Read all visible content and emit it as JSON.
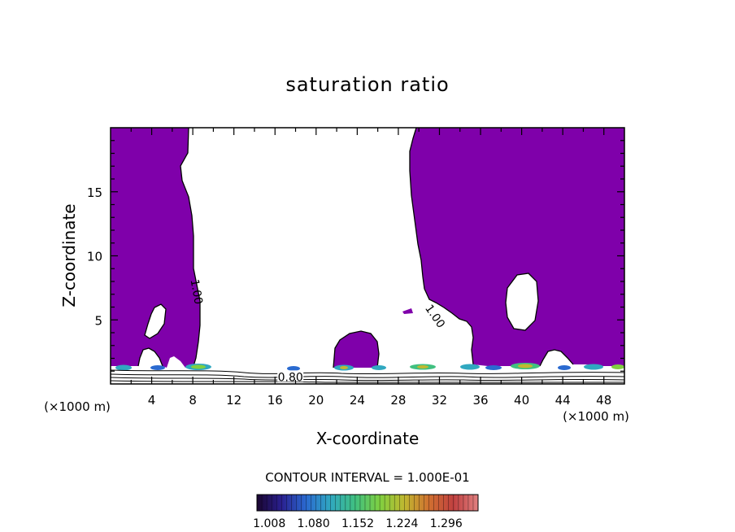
{
  "chart_data": {
    "type": "heatmap",
    "title": "saturation ratio",
    "xlabel": "X-coordinate",
    "ylabel": "Z-coordinate",
    "x_unit_label": "(×1000 m)",
    "y_unit_label": "(×1000 m)",
    "xlim": [
      0,
      50
    ],
    "ylim": [
      0,
      20
    ],
    "x_ticks": [
      4,
      8,
      12,
      16,
      20,
      24,
      28,
      32,
      36,
      40,
      44,
      48
    ],
    "x_tick_labels": [
      "4",
      "8",
      "12",
      "16",
      "20",
      "24",
      "28",
      "32",
      "36",
      "40",
      "44",
      "48"
    ],
    "y_ticks": [
      5,
      10,
      15
    ],
    "y_tick_labels": [
      "5",
      "10",
      "15"
    ],
    "contour_labels": [
      {
        "text": "1.00",
        "x": 8.4,
        "z": 7.2,
        "rotate": 80
      },
      {
        "text": "1.00",
        "x": 31.6,
        "z": 5.3,
        "rotate": 55
      },
      {
        "text": "0.80",
        "x": 17.5,
        "z": 0.55,
        "rotate": 0
      }
    ],
    "contour_interval": "CONTOUR INTERVAL = 1.000E-01",
    "colorbar": {
      "ticks": [
        "1.008",
        "1.080",
        "1.152",
        "1.224",
        "1.296"
      ],
      "colors": [
        "#1a0530",
        "#2a2090",
        "#2a6ad0",
        "#30a8c0",
        "#40c080",
        "#80d040",
        "#c0b830",
        "#d07030",
        "#c04040",
        "#e08080"
      ]
    },
    "fill_color": "#7f00aa"
  }
}
